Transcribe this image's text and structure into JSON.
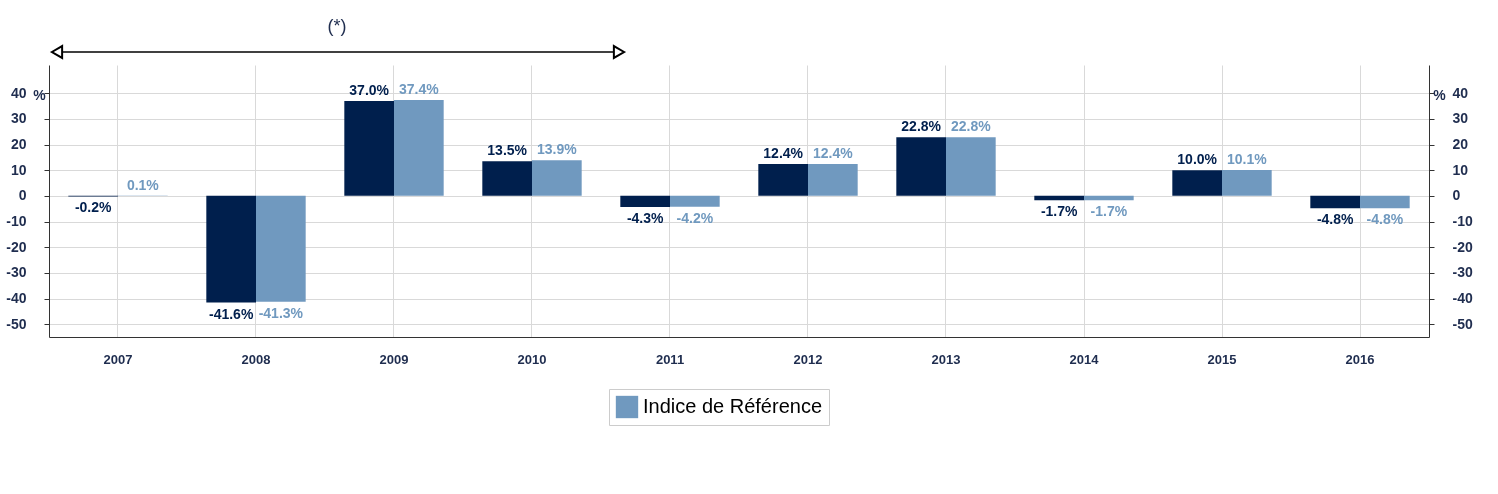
{
  "chart_data": {
    "type": "bar",
    "categories": [
      "2007",
      "2008",
      "2009",
      "2010",
      "2011",
      "2012",
      "2013",
      "2014",
      "2015",
      "2016"
    ],
    "series": [
      {
        "color": "#001f4d",
        "values": [
          -0.2,
          -41.6,
          37.0,
          13.5,
          -4.3,
          12.4,
          22.8,
          -1.7,
          10.0,
          -4.8
        ],
        "value_labels": [
          "-0.2%",
          "-41.6%",
          "37.0%",
          "13.5%",
          "-4.3%",
          "12.4%",
          "22.8%",
          "-1.7%",
          "10.0%",
          "-4.8%"
        ]
      },
      {
        "name": "Indice de Référence",
        "color": "#7099bf",
        "values": [
          0.1,
          -41.3,
          37.4,
          13.9,
          -4.2,
          12.4,
          22.8,
          -1.7,
          10.1,
          -4.8
        ],
        "value_labels": [
          "0.1%",
          "-41.3%",
          "37.4%",
          "13.9%",
          "-4.2%",
          "12.4%",
          "22.8%",
          "-1.7%",
          "10.1%",
          "-4.8%"
        ]
      }
    ],
    "ylabel": "%",
    "y2label": "%",
    "ylim": [
      -55,
      51
    ],
    "yticks": [
      -50,
      -40,
      -30,
      -20,
      -10,
      0,
      10,
      20,
      30,
      40
    ],
    "y2lim": [
      -55,
      51
    ],
    "y2ticks": [
      -50,
      -40,
      -30,
      -20,
      -10,
      0,
      10,
      20,
      30,
      40
    ],
    "annotations": [
      "(*)"
    ],
    "grid": true,
    "legend": "bottom"
  }
}
